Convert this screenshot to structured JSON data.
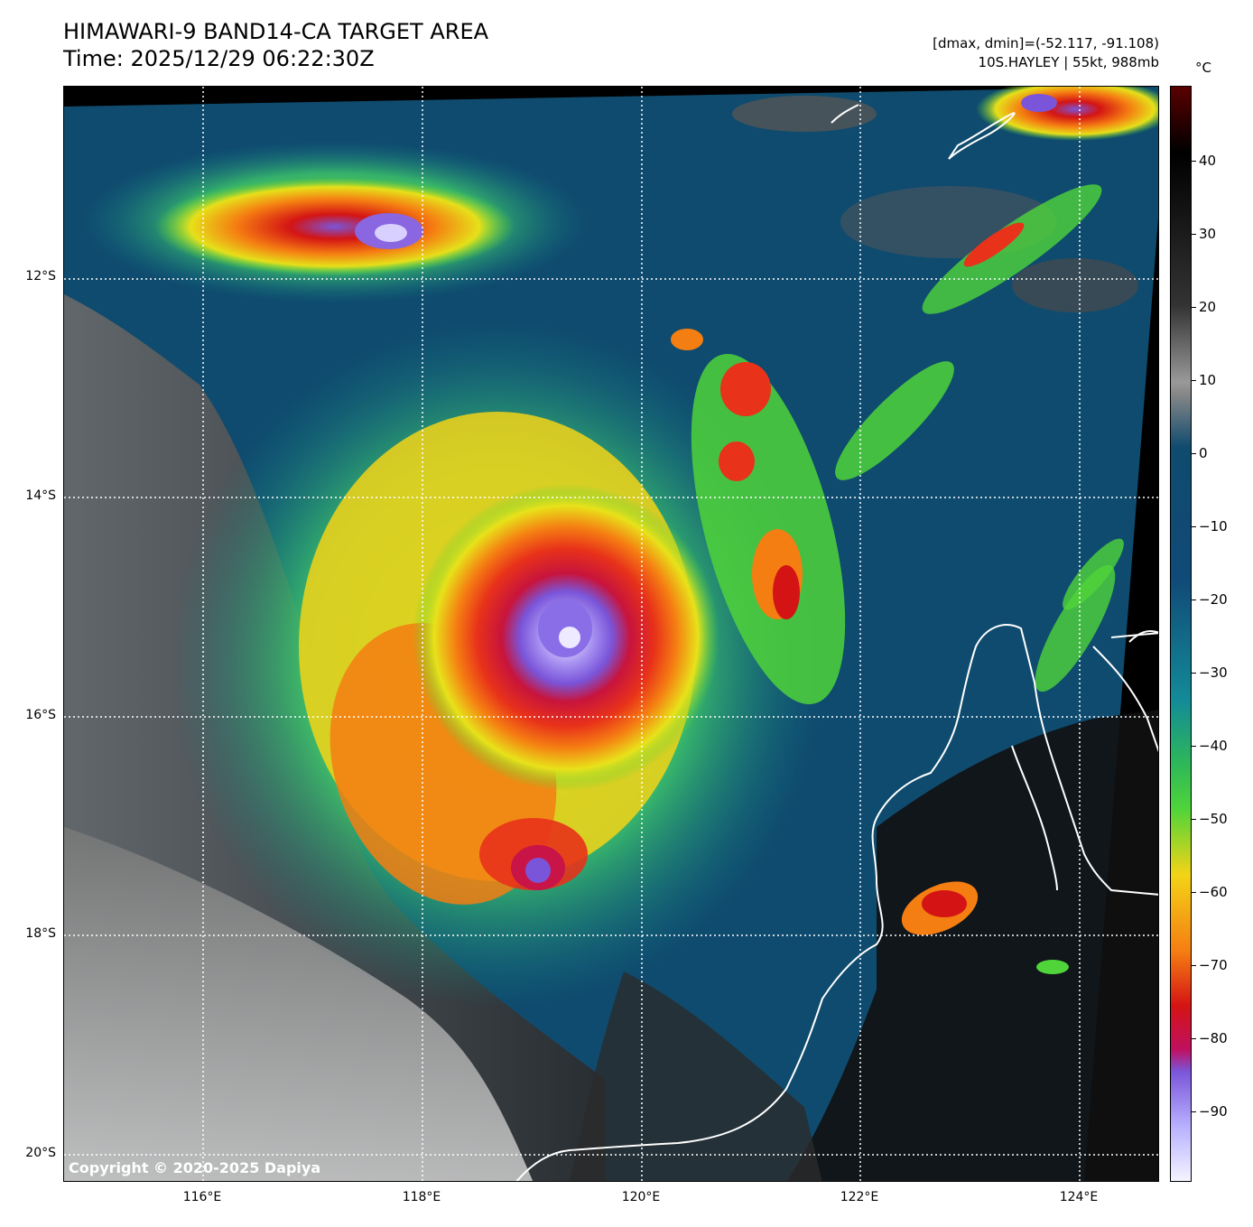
{
  "header": {
    "title_line1": "HIMAWARI-9 BAND14-CA TARGET AREA",
    "title_line2": "Time: 2025/12/29 06:22:30Z",
    "info_line1": "[dmax, dmin]=(-52.117, -91.108)",
    "info_line2": "10S.HAYLEY | 55kt, 988mb"
  },
  "map": {
    "lat_labels": [
      "12°S",
      "14°S",
      "16°S",
      "18°S",
      "20°S"
    ],
    "lon_labels": [
      "116°E",
      "118°E",
      "120°E",
      "122°E",
      "124°E"
    ],
    "copyright": "Copyright © 2020-2025 Dapiya"
  },
  "colorbar": {
    "unit": "°C",
    "ticks": [
      "40",
      "30",
      "20",
      "10",
      "0",
      "−10",
      "−20",
      "−30",
      "−40",
      "−50",
      "−60",
      "−70",
      "−80",
      "−90"
    ],
    "colors": {
      "warm_dark": "#000000",
      "gray": "#888888",
      "teal_blue": "#0f4b6e",
      "green": "#4fd43a",
      "yellow": "#f3d417",
      "orange": "#f57e12",
      "red": "#d41414",
      "purple": "#7a55d9",
      "white": "#f4f4ff"
    }
  }
}
